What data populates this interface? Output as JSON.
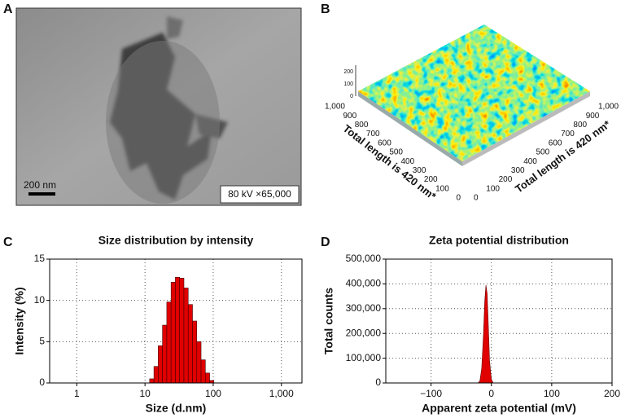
{
  "panels": {
    "a": {
      "label": "A",
      "scale_bar": "200 nm",
      "caption": "80 kV ×65,000"
    },
    "b": {
      "label": "B",
      "axis_left": {
        "title": "Total length is 420 nm*",
        "ticks": [
          0,
          100,
          200,
          300,
          400,
          500,
          600,
          700,
          800,
          900,
          {
            "value": 1000,
            "label": "1,000"
          }
        ]
      },
      "axis_right": {
        "title": "Total length is 420 nm*",
        "ticks": [
          0,
          100,
          200,
          300,
          400,
          500,
          600,
          700,
          800,
          900,
          {
            "value": 1000,
            "label": "1,000"
          }
        ]
      },
      "z_ticks": [
        0,
        100,
        200
      ]
    }
  },
  "chart_data": [
    {
      "type": "histogram",
      "label": "C",
      "title": "Size distribution by intensity",
      "x_label": "Size (d.nm)",
      "y_label": "Intensity (%)",
      "color": "#e00000",
      "log_x": true,
      "grid": true,
      "bins": [
        11.7,
        13.52,
        15.62,
        18.05,
        20.86,
        24.11,
        27.86,
        32.19,
        37.2,
        42.99,
        49.68,
        57.41,
        66.34,
        76.66,
        88.59,
        102.4
      ],
      "values": [
        0.5,
        2,
        4.5,
        7,
        9.8,
        12.2,
        12.8,
        12.7,
        11.5,
        9.5,
        7.5,
        5,
        2.8,
        1.2,
        0.3
      ],
      "xlim": [
        0.4,
        2000
      ],
      "xticks": [
        1,
        10,
        100,
        {
          "value": 1000,
          "label": "1,000"
        }
      ],
      "ylim": [
        0,
        15
      ],
      "yticks": [
        0,
        5,
        10,
        15
      ]
    },
    {
      "type": "area",
      "label": "D",
      "title": "Zeta potential distribution",
      "x_label": "Apparent zeta potential (mV)",
      "y_label": "Total counts",
      "color": "#e00000",
      "grid": true,
      "x": [
        -22,
        -19,
        -16,
        -13,
        -11,
        -9,
        -7,
        -5,
        -3,
        0,
        3
      ],
      "values": [
        0,
        8000,
        60000,
        200000,
        330000,
        395000,
        360000,
        230000,
        90000,
        15000,
        0
      ],
      "xlim": [
        -175,
        200
      ],
      "xticks": [
        {
          "value": -100,
          "label": "−100"
        },
        0,
        100,
        200
      ],
      "ylim": [
        0,
        500000
      ],
      "yticks": [
        0,
        {
          "value": 100000,
          "label": "100,000"
        },
        {
          "value": 200000,
          "label": "200,000"
        },
        {
          "value": 300000,
          "label": "300,000"
        },
        {
          "value": 400000,
          "label": "400,000"
        },
        {
          "value": 500000,
          "label": "500,000"
        }
      ]
    }
  ]
}
